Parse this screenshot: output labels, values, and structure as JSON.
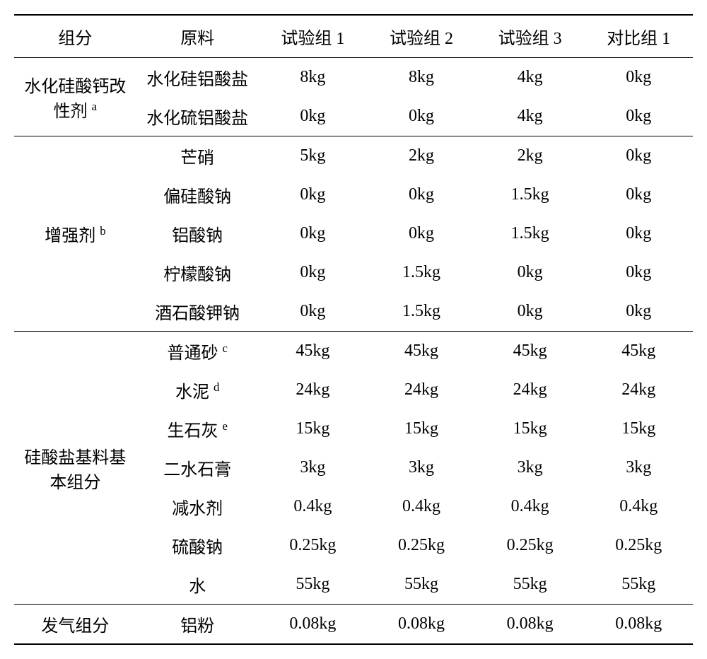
{
  "table": {
    "background_color": "#ffffff",
    "text_color": "#000000",
    "font_size": 24,
    "border_color": "#000000",
    "top_border_width": 2.5,
    "section_border_width": 1.5,
    "columns": [
      "组分",
      "原料",
      "试验组 1",
      "试验组 2",
      "试验组 3",
      "对比组 1"
    ],
    "column_widths": [
      "18%",
      "18%",
      "16%",
      "16%",
      "16%",
      "16%"
    ],
    "groups": [
      {
        "name": "水化硅酸钙改性剂",
        "sup": "a",
        "rows": [
          {
            "material": "水化硅铝酸盐",
            "v1": "8kg",
            "v2": "8kg",
            "v3": "4kg",
            "v4": "0kg"
          },
          {
            "material": "水化硫铝酸盐",
            "v1": "0kg",
            "v2": "0kg",
            "v3": "4kg",
            "v4": "0kg"
          }
        ]
      },
      {
        "name": "增强剂",
        "sup": "b",
        "rows": [
          {
            "material": "芒硝",
            "v1": "5kg",
            "v2": "2kg",
            "v3": "2kg",
            "v4": "0kg"
          },
          {
            "material": "偏硅酸钠",
            "v1": "0kg",
            "v2": "0kg",
            "v3": "1.5kg",
            "v4": "0kg"
          },
          {
            "material": "铝酸钠",
            "v1": "0kg",
            "v2": "0kg",
            "v3": "1.5kg",
            "v4": "0kg"
          },
          {
            "material": "柠檬酸钠",
            "v1": "0kg",
            "v2": "1.5kg",
            "v3": "0kg",
            "v4": "0kg"
          },
          {
            "material": "酒石酸钾钠",
            "v1": "0kg",
            "v2": "1.5kg",
            "v3": "0kg",
            "v4": "0kg"
          }
        ]
      },
      {
        "name": "硅酸盐基料基本组分",
        "sup": "",
        "rows": [
          {
            "material": "普通砂",
            "sup": "c",
            "v1": "45kg",
            "v2": "45kg",
            "v3": "45kg",
            "v4": "45kg"
          },
          {
            "material": "水泥",
            "sup": "d",
            "v1": "24kg",
            "v2": "24kg",
            "v3": "24kg",
            "v4": "24kg"
          },
          {
            "material": "生石灰",
            "sup": "e",
            "v1": "15kg",
            "v2": "15kg",
            "v3": "15kg",
            "v4": "15kg"
          },
          {
            "material": "二水石膏",
            "sup": "",
            "v1": "3kg",
            "v2": "3kg",
            "v3": "3kg",
            "v4": "3kg"
          },
          {
            "material": "减水剂",
            "sup": "",
            "v1": "0.4kg",
            "v2": "0.4kg",
            "v3": "0.4kg",
            "v4": "0.4kg"
          },
          {
            "material": "硫酸钠",
            "sup": "",
            "v1": "0.25kg",
            "v2": "0.25kg",
            "v3": "0.25kg",
            "v4": "0.25kg"
          },
          {
            "material": "水",
            "sup": "",
            "v1": "55kg",
            "v2": "55kg",
            "v3": "55kg",
            "v4": "55kg"
          }
        ]
      },
      {
        "name": "发气组分",
        "sup": "",
        "rows": [
          {
            "material": "铝粉",
            "v1": "0.08kg",
            "v2": "0.08kg",
            "v3": "0.08kg",
            "v4": "0.08kg"
          }
        ]
      }
    ]
  }
}
